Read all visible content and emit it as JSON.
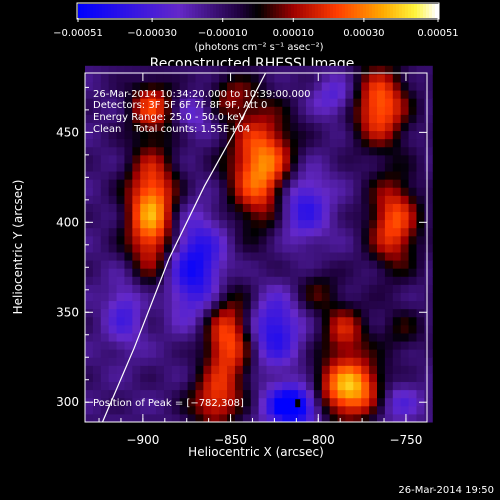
{
  "chart_data": {
    "type": "heatmap",
    "title": "Reconstructed RHESSI Image",
    "xlabel": "Heliocentric X (arcsec)",
    "ylabel": "Heliocentric Y (arcsec)",
    "xlim": [
      -933,
      -738
    ],
    "ylim": [
      289,
      483
    ],
    "x_ticks": [
      -900,
      -850,
      -800,
      -750
    ],
    "x_tick_labels": [
      "−900",
      "−850",
      "−800",
      "−750"
    ],
    "y_ticks": [
      300,
      350,
      400,
      450
    ],
    "y_tick_labels": [
      "300",
      "350",
      "400",
      "450"
    ],
    "colorbar": {
      "range": [
        -0.00051,
        0.00051
      ],
      "ticks": [
        -0.00051,
        -0.0003,
        -0.0001,
        0.0001,
        0.0003,
        0.00051
      ],
      "tick_labels": [
        "−0.00051",
        "−0.00030",
        "−0.00010",
        "0.00010",
        "0.00030",
        "0.00051"
      ],
      "unit_label": "(photons cm⁻² s⁻¹ asec⁻²)"
    },
    "annotations": {
      "time_range": "26-Mar-2014 10:34:20.000 to 10:39:00.000",
      "detectors": "Detectors: 3F 5F 6F 7F 8F 9F, Att 0",
      "energy_range": "Energy Range: 25.0 - 50.0 keV",
      "clean_counts": "Clean    Total counts: 1.55E+04",
      "peak_position": "Position of Peak = [−782,308]"
    },
    "peak": [
      -782,
      308
    ],
    "limb_curve": [
      [
        -923,
        289
      ],
      [
        -905,
        330
      ],
      [
        -885,
        380
      ],
      [
        -865,
        420
      ],
      [
        -845,
        455
      ],
      [
        -830,
        483
      ]
    ],
    "sources": [
      {
        "x": -895,
        "y": 405,
        "sx": 10,
        "sy": 24,
        "amp": 0.00048
      },
      {
        "x": -895,
        "y": 465,
        "sx": 9,
        "sy": 10,
        "amp": 0.0003
      },
      {
        "x": -832,
        "y": 430,
        "sx": 13,
        "sy": 22,
        "amp": 0.00046
      },
      {
        "x": -852,
        "y": 335,
        "sx": 10,
        "sy": 20,
        "amp": 0.00038
      },
      {
        "x": -860,
        "y": 300,
        "sx": 10,
        "sy": 10,
        "amp": 0.00026
      },
      {
        "x": -782,
        "y": 308,
        "sx": 13,
        "sy": 12,
        "amp": 0.00051
      },
      {
        "x": -785,
        "y": 340,
        "sx": 9,
        "sy": 10,
        "amp": 0.00026
      },
      {
        "x": -765,
        "y": 465,
        "sx": 11,
        "sy": 15,
        "amp": 0.0004
      },
      {
        "x": -757,
        "y": 400,
        "sx": 10,
        "sy": 18,
        "amp": 0.00036
      },
      {
        "x": -800,
        "y": 362,
        "sx": 9,
        "sy": 9,
        "amp": 0.00014
      },
      {
        "x": -850,
        "y": 470,
        "sx": 10,
        "sy": 9,
        "amp": 0.00018
      },
      {
        "x": -752,
        "y": 340,
        "sx": 9,
        "sy": 9,
        "amp": 0.00012
      },
      {
        "x": -815,
        "y": 298,
        "sx": 10,
        "sy": 8,
        "amp": -0.00051
      },
      {
        "x": -825,
        "y": 340,
        "sx": 10,
        "sy": 14,
        "amp": -0.0003
      },
      {
        "x": -870,
        "y": 375,
        "sx": 12,
        "sy": 20,
        "amp": -0.00036
      },
      {
        "x": -810,
        "y": 410,
        "sx": 11,
        "sy": 14,
        "amp": -0.0003
      },
      {
        "x": -910,
        "y": 350,
        "sx": 8,
        "sy": 14,
        "amp": -0.0002
      },
      {
        "x": -790,
        "y": 470,
        "sx": 9,
        "sy": 8,
        "amp": -0.00018
      },
      {
        "x": -755,
        "y": 300,
        "sx": 9,
        "sy": 8,
        "amp": -0.00018
      },
      {
        "x": -870,
        "y": 460,
        "sx": 8,
        "sy": 8,
        "amp": -0.00014
      }
    ],
    "offset": -0.00012
  },
  "footer": "26-Mar-2014 19:50"
}
